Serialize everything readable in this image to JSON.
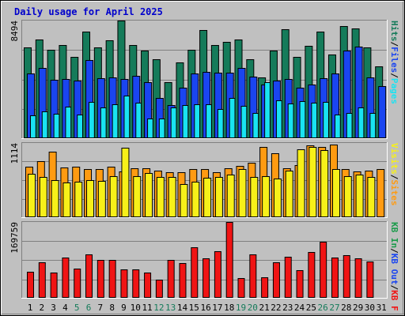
{
  "chart_data": {
    "type": "bar",
    "title": "Daily usage for April 2025",
    "colors": {
      "hits": "#157b5a",
      "files": "#1a45f0",
      "pages": "#19e3f2",
      "visits": "#f7f019",
      "sites": "#ff9b12",
      "kb_in": "#1a9b4a",
      "kb_out": "#1a45f0",
      "kb_f": "#f01414",
      "title": "#0000cc",
      "weekend": "#157b5a",
      "weekday": "#000000",
      "background": "#c0c0c0"
    },
    "legend_top": [
      {
        "label": "Hits",
        "color": "#157b5a"
      },
      {
        "label": "/",
        "color": "#000000"
      },
      {
        "label": "Files",
        "color": "#1a45f0"
      },
      {
        "label": "/",
        "color": "#000000"
      },
      {
        "label": "Pages",
        "color": "#19e3f2"
      }
    ],
    "legend_mid": [
      {
        "label": "Visits",
        "color": "#f7f019"
      },
      {
        "label": "/",
        "color": "#000000"
      },
      {
        "label": "Sites",
        "color": "#ff9b12"
      }
    ],
    "legend_bot": [
      {
        "label": "KB In",
        "color": "#1a9b4a"
      },
      {
        "label": "/",
        "color": "#000000"
      },
      {
        "label": "KB Out",
        "color": "#1a45f0"
      },
      {
        "label": "/",
        "color": "#000000"
      },
      {
        "label": "KB F",
        "color": "#f01414"
      }
    ],
    "ymax_top": "8494",
    "ymax_mid": "1114",
    "ymax_bot": "169759",
    "x": [
      "1",
      "2",
      "3",
      "4",
      "5",
      "6",
      "7",
      "8",
      "9",
      "10",
      "11",
      "12",
      "13",
      "14",
      "15",
      "16",
      "17",
      "18",
      "19",
      "20",
      "21",
      "22",
      "23",
      "24",
      "25",
      "26",
      "27",
      "28",
      "29",
      "30",
      "31"
    ],
    "weekend_days": [
      "5",
      "6",
      "12",
      "13",
      "19",
      "20",
      "26",
      "27"
    ],
    "series": [
      {
        "name": "Hits",
        "values": [
          6550,
          7100,
          6400,
          6750,
          5850,
          7700,
          6550,
          7050,
          8494,
          6750,
          6350,
          5700,
          4050,
          5500,
          6400,
          7800,
          6700,
          6950,
          7150,
          5700,
          4400,
          6300,
          7850,
          5850,
          6650,
          7700,
          6050,
          8100,
          7900,
          6550,
          5200
        ]
      },
      {
        "name": "Files",
        "values": [
          4650,
          5050,
          4200,
          4250,
          4150,
          5650,
          4350,
          4400,
          4300,
          4500,
          4050,
          2900,
          2400,
          3650,
          4650,
          4800,
          4750,
          4750,
          5100,
          4450,
          3850,
          4150,
          4300,
          3650,
          3900,
          4350,
          4650,
          6300,
          6600,
          4400,
          3750
        ]
      },
      {
        "name": "Pages",
        "values": [
          1650,
          1950,
          1750,
          2300,
          1700,
          2650,
          2200,
          2450,
          3100,
          2550,
          1450,
          1450,
          2200,
          2400,
          2450,
          2450,
          2100,
          2900,
          2350,
          1800,
          4050,
          2750,
          2500,
          2700,
          2550,
          2600,
          1700,
          1800,
          2200,
          1800,
          0
        ]
      },
      {
        "name": "Visits",
        "values": [
          650,
          600,
          560,
          520,
          530,
          560,
          540,
          620,
          1040,
          620,
          660,
          600,
          600,
          500,
          530,
          590,
          600,
          640,
          720,
          600,
          620,
          580,
          700,
          1020,
          1060,
          1010,
          720,
          620,
          640,
          610,
          0
        ]
      },
      {
        "name": "Sites",
        "values": [
          760,
          840,
          980,
          750,
          760,
          720,
          720,
          760,
          690,
          740,
          740,
          700,
          680,
          680,
          720,
          720,
          670,
          740,
          770,
          820,
          1050,
          960,
          740,
          780,
          1080,
          1060,
          1090,
          720,
          690,
          700,
          720
        ]
      },
      {
        "name": "KB F",
        "values": [
          59000,
          79000,
          57000,
          90000,
          66000,
          97000,
          85000,
          84000,
          63000,
          63000,
          56000,
          41000,
          84000,
          77000,
          114000,
          89000,
          105000,
          169759,
          44000,
          98000,
          46000,
          79000,
          92000,
          62000,
          103000,
          126000,
          91000,
          95000,
          88000,
          82000,
          0
        ]
      }
    ]
  }
}
